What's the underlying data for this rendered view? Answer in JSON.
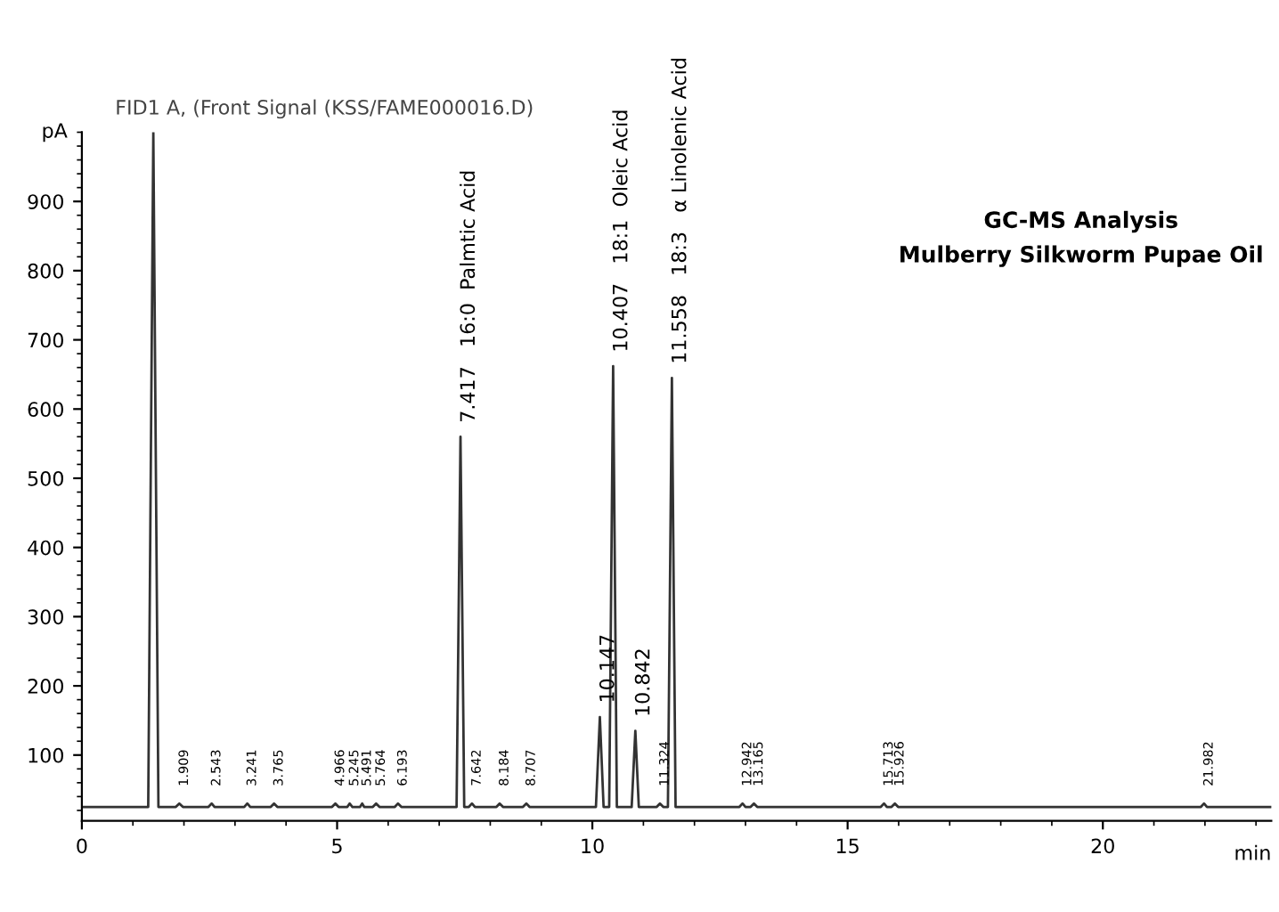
{
  "chart_data": {
    "type": "line",
    "title": "GC-MS Analysis",
    "subtitle": "Mulberry Silkworm Pupae Oil",
    "ylabel": "pA",
    "xlabel": "min",
    "x": [
      0,
      1.3,
      1.4,
      1.5,
      1.84,
      1.909,
      1.98,
      2.48,
      2.543,
      2.6,
      3.18,
      3.241,
      3.3,
      3.7,
      3.765,
      3.83,
      4.9,
      4.966,
      5.03,
      5.2,
      5.245,
      5.3,
      5.45,
      5.491,
      5.53,
      5.7,
      5.764,
      5.83,
      6.13,
      6.193,
      6.26,
      7.34,
      7.417,
      7.49,
      7.58,
      7.642,
      7.7,
      8.12,
      8.184,
      8.25,
      8.64,
      8.707,
      8.77,
      10.07,
      10.147,
      10.22,
      10.33,
      10.407,
      10.48,
      10.77,
      10.842,
      10.91,
      11.26,
      11.324,
      11.39,
      11.48,
      11.558,
      11.63,
      12.88,
      12.942,
      13.0,
      13.1,
      13.165,
      13.23,
      15.65,
      15.713,
      15.77,
      15.86,
      15.926,
      15.99,
      21.92,
      21.982,
      22.04,
      23.3
    ],
    "series": [
      {
        "color": "#333333",
        "values": [
          25,
          25,
          1000,
          25,
          25,
          30,
          25,
          25,
          30,
          25,
          25,
          30,
          25,
          25,
          30,
          25,
          25,
          30,
          25,
          25,
          30,
          25,
          25,
          30,
          25,
          25,
          30,
          25,
          25,
          30,
          25,
          25,
          560,
          25,
          25,
          30,
          25,
          25,
          30,
          25,
          25,
          30,
          25,
          25,
          155,
          25,
          25,
          662,
          25,
          25,
          135,
          25,
          25,
          30,
          25,
          25,
          645,
          25,
          25,
          30,
          25,
          25,
          30,
          25,
          25,
          30,
          25,
          25,
          30,
          25,
          25,
          30,
          25,
          25
        ]
      }
    ],
    "xlim": [
      0,
      23.3
    ],
    "ylim": [
      5,
      1000
    ],
    "xticks": [
      0,
      5,
      10,
      15,
      20
    ],
    "yticks": [
      100,
      200,
      300,
      400,
      500,
      600,
      700,
      800,
      900
    ],
    "grid": false,
    "legend": false,
    "marker": "none",
    "line_style": "solid",
    "annotations": [
      "FID1 A, (Front Signal (KSS/FAME000016.D)",
      {
        "text": "1.909",
        "x": 1.909,
        "y": 35
      },
      {
        "text": "2.543",
        "x": 2.543,
        "y": 35
      },
      {
        "text": "3.241",
        "x": 3.241,
        "y": 35
      },
      {
        "text": "3.765",
        "x": 3.765,
        "y": 35
      },
      {
        "text": "4.966",
        "x": 4.966,
        "y": 35
      },
      {
        "text": "5.245",
        "x": 5.245,
        "y": 35
      },
      {
        "text": "5.491",
        "x": 5.491,
        "y": 35
      },
      {
        "text": "5.764",
        "x": 5.764,
        "y": 35
      },
      {
        "text": "6.193",
        "x": 6.193,
        "y": 35
      },
      {
        "text": "7.417   16:0  Palmtic Acid",
        "x": 7.417,
        "y": 560
      },
      {
        "text": "7.642",
        "x": 7.642,
        "y": 35
      },
      {
        "text": "8.184",
        "x": 8.184,
        "y": 35
      },
      {
        "text": "8.707",
        "x": 8.707,
        "y": 35
      },
      {
        "text": "10.147",
        "x": 10.147,
        "y": 155
      },
      {
        "text": "10.407   18:1  Oleic Acid",
        "x": 10.407,
        "y": 662
      },
      {
        "text": "10.842",
        "x": 10.842,
        "y": 135
      },
      {
        "text": "11.324",
        "x": 11.324,
        "y": 35
      },
      {
        "text": "11.558   18:3   α Linolenic Acid",
        "x": 11.558,
        "y": 645
      },
      {
        "text": "12.942",
        "x": 12.942,
        "y": 35
      },
      {
        "text": "13.165",
        "x": 13.165,
        "y": 35
      },
      {
        "text": "15.713",
        "x": 15.713,
        "y": 35
      },
      {
        "text": "15.926",
        "x": 15.926,
        "y": 35
      },
      {
        "text": "21.982",
        "x": 21.982,
        "y": 35
      }
    ]
  }
}
